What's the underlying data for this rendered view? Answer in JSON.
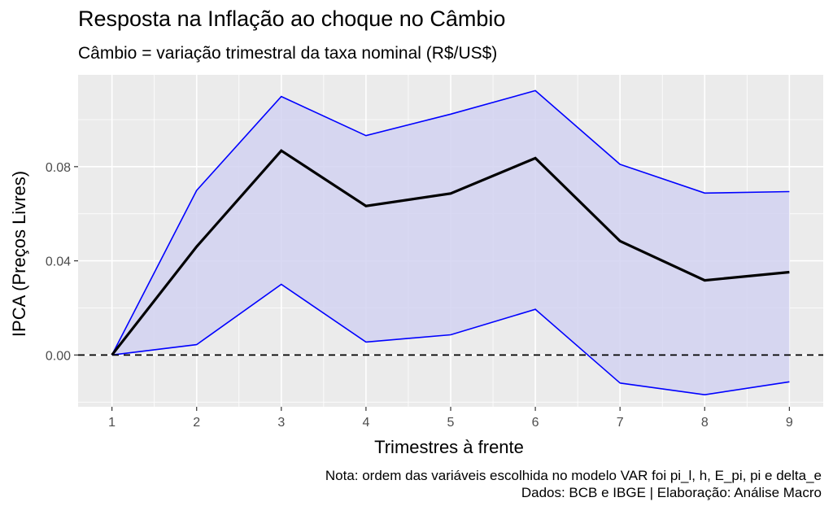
{
  "chart_data": {
    "type": "line",
    "title": "Resposta na Inflação ao choque no Câmbio",
    "subtitle": "Câmbio = variação trimestral da taxa nominal (R$/US$)",
    "xlabel": "Trimestres à frente",
    "ylabel": "IPCA (Preços Livres)",
    "caption": [
      "Nota: ordem das variáveis escolhida no modelo VAR foi pi_l, h, E_pi, pi e delta_e",
      "Dados: BCB e IBGE | Elaboração: Análise Macro"
    ],
    "x": [
      1,
      2,
      3,
      4,
      5,
      6,
      7,
      8,
      9
    ],
    "x_ticks": [
      "1",
      "2",
      "3",
      "4",
      "5",
      "6",
      "7",
      "8",
      "9"
    ],
    "y_ticks": [
      "0.00",
      "0.04",
      "0.08"
    ],
    "y_tick_values": [
      0.0,
      0.04,
      0.08
    ],
    "xlim": [
      0.6,
      9.4
    ],
    "ylim": [
      -0.022,
      0.119
    ],
    "series": [
      {
        "values": [
          0.0,
          0.046,
          0.0868,
          0.0633,
          0.0686,
          0.0836,
          0.0484,
          0.0317,
          0.0352
        ]
      },
      {
        "values": [
          0.0,
          0.0699,
          0.1098,
          0.0932,
          0.1023,
          0.1123,
          0.081,
          0.0688,
          0.0694
        ]
      },
      {
        "values": [
          0.0,
          0.0044,
          0.03,
          0.0055,
          0.0086,
          0.0194,
          -0.0119,
          -0.0169,
          -0.0114
        ]
      }
    ],
    "reference_line": 0.0,
    "colors": {
      "panel": "#ebebeb",
      "grid": "#ffffff",
      "ribbon": "#d2d2f1",
      "bounds": "#0000ff",
      "line": "#000000",
      "ticks": "#4d4d4d"
    },
    "grid": true
  }
}
